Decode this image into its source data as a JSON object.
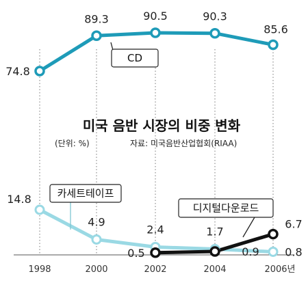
{
  "chart_data": {
    "type": "line",
    "title": "미국 음반 시장의 비중 변화",
    "unit": "(단위: %)",
    "source": "자료: 미국음반산업협회(RIAA)",
    "x": [
      1998,
      2000,
      2002,
      2004,
      2006
    ],
    "x_tick_labels": [
      "1998",
      "2000",
      "2002",
      "2004",
      "2006년"
    ],
    "series": [
      {
        "name": "CD",
        "x": [
          1998,
          2000,
          2002,
          2004,
          2006
        ],
        "values": [
          74.8,
          89.3,
          90.5,
          90.3,
          85.6
        ],
        "value_labels": [
          "74.8",
          "89.3",
          "90.5",
          "90.3",
          "85.6"
        ],
        "color": "#1E9BB8"
      },
      {
        "name": "카세트테이프",
        "x": [
          1998,
          2000,
          2002,
          2004,
          2006
        ],
        "values": [
          14.8,
          4.9,
          2.4,
          1.7,
          0.8
        ],
        "value_labels": [
          "14.8",
          "4.9",
          "2.4",
          "1.7",
          "0.8"
        ],
        "color": "#9AD9E4"
      },
      {
        "name": "디지털다운로드",
        "x": [
          2002,
          2004,
          2006
        ],
        "values": [
          0.5,
          0.9,
          6.7
        ],
        "value_labels": [
          "0.5",
          "0.9",
          "6.7"
        ],
        "color": "#111111"
      }
    ],
    "grid": "vertical dotted"
  }
}
